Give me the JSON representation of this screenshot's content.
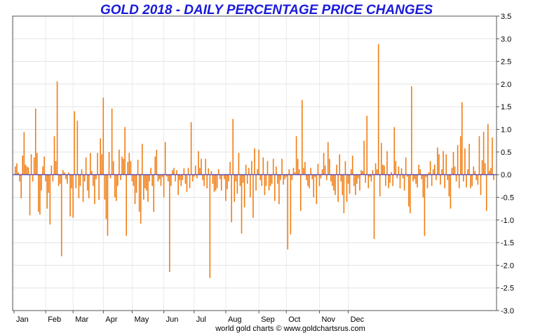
{
  "chart_data": {
    "type": "bar",
    "title": "GOLD 2018 - DAILY PERCENTAGE PRICE CHANGES",
    "credit": "world gold charts © www.goldchartsrus.com",
    "xlabel": "",
    "ylabel": "",
    "ylim": [
      -3.0,
      3.5
    ],
    "y_ticks": [
      "3.5",
      "3.0",
      "2.5",
      "2.0",
      "1.5",
      "1.0",
      "0.5",
      "0.0",
      "-0.5",
      "-1.0",
      "-1.5",
      "-2.0",
      "-2.5",
      "-3.0"
    ],
    "month_labels": [
      "Jan",
      "Feb",
      "Mar",
      "Apr",
      "May",
      "Jun",
      "Jul",
      "Aug",
      "Sep",
      "Oct",
      "Nov",
      "Dec"
    ],
    "y_axis_position": "right",
    "grid": true,
    "bar_color": "#f07d14",
    "zero_line_color": "#1a1acc",
    "title_color": "#1a1adb",
    "series": [
      {
        "name": "Daily % change",
        "values": [
          0.18,
          0.25,
          0.05,
          -0.15,
          -0.52,
          0.42,
          0.94,
          0.22,
          0.18,
          0.16,
          -0.9,
          0.45,
          -0.15,
          0.38,
          1.46,
          0.48,
          -0.82,
          -0.88,
          -0.35,
          0.18,
          0.4,
          -0.15,
          -0.75,
          -0.4,
          -1.1,
          0.2,
          -0.15,
          0.85,
          0.3,
          2.06,
          -0.25,
          -0.2,
          -1.8,
          0.1,
          0.05,
          -0.1,
          -0.2,
          0.05,
          -0.92,
          -0.3,
          -0.95,
          1.4,
          -0.3,
          1.19,
          -0.52,
          -0.25,
          0.12,
          -0.6,
          -0.15,
          0.38,
          -0.35,
          -0.52,
          0.48,
          0.08,
          -0.25,
          -0.65,
          -0.1,
          0.48,
          -0.56,
          0.8,
          0.45,
          1.7,
          -0.55,
          -0.98,
          -1.35,
          0.5,
          -0.08,
          1.46,
          0.3,
          -0.5,
          -0.58,
          -0.25,
          0.55,
          -0.12,
          0.4,
          0.35,
          1.05,
          -1.35,
          0.28,
          0.48,
          0.3,
          -0.15,
          -0.25,
          -0.65,
          -0.4,
          0.33,
          -0.82,
          -1.08,
          0.68,
          -0.55,
          -0.3,
          -0.35,
          -0.6,
          -0.15,
          0.15,
          -0.25,
          -0.82,
          0.4,
          0.55,
          -0.15,
          -0.1,
          -0.25,
          -0.05,
          -0.5,
          0.72,
          -0.04,
          -0.15,
          -2.15,
          -0.25,
          0.1,
          0.15,
          -0.15,
          0.1,
          -0.45,
          -0.12,
          -0.25,
          -0.12,
          0.14,
          -0.2,
          -0.38,
          0.15,
          -0.3,
          1.16,
          -0.15,
          -0.05,
          0.2,
          -0.08,
          0.52,
          0.15,
          0.35,
          -0.12,
          -0.25,
          0.35,
          -0.3,
          0.14,
          -2.28,
          0.08,
          -0.2,
          -0.38,
          -0.35,
          -0.3,
          0.12,
          -0.1,
          -0.35,
          -0.02,
          -0.1,
          -0.58,
          -0.32,
          -0.15,
          0.28,
          -1.05,
          1.23,
          -0.6,
          -0.15,
          -0.42,
          0.48,
          -0.25,
          -1.3,
          -0.18,
          -0.72,
          0.22,
          -0.2,
          0.15,
          -0.5,
          0.3,
          -0.95,
          0.58,
          -0.35,
          0.12,
          0.55,
          -0.12,
          -0.25,
          0.38,
          -0.45,
          -0.25,
          0.3,
          -0.35,
          -0.25,
          -0.2,
          0.35,
          -0.58,
          0.18,
          -0.2,
          -0.65,
          -0.12,
          0.35,
          -0.22,
          -0.1,
          -0.05,
          -1.65,
          0.12,
          -1.32,
          -0.12,
          0.15,
          0.05,
          0.85,
          0.35,
          0.12,
          -0.8,
          1.65,
          0.15,
          0.28,
          -0.12,
          -0.25,
          -0.3,
          0.15,
          -0.1,
          -0.5,
          -0.05,
          -0.65,
          0.24,
          -0.25,
          -0.08,
          0.12,
          0.48,
          0.2,
          -0.12,
          0.72,
          0.35,
          -0.15,
          -0.25,
          -0.35,
          -0.45,
          0.22,
          -0.6,
          0.45,
          -0.15,
          -0.45,
          -0.85,
          0.3,
          -0.6,
          -0.2,
          -0.42,
          0.12,
          0.42,
          -0.25,
          -0.45,
          -0.2,
          -0.08,
          -0.35,
          0.1,
          0.08,
          0.75,
          -0.18,
          1.3,
          -0.3,
          -0.05,
          -0.15,
          0.1,
          -1.42,
          0.25,
          0.12,
          2.88,
          -0.48,
          0.7,
          0.22,
          0.2,
          -0.25,
          0.52,
          -0.3,
          -0.18,
          0.06,
          -0.25,
          1.05,
          0.3,
          -0.08,
          0.18,
          -0.3,
          0.14,
          -0.08,
          -0.35,
          0.38,
          -0.05,
          -0.7,
          -0.85,
          1.95,
          -0.15,
          -0.1,
          -0.2,
          -0.28,
          0.22,
          0.12,
          -0.1,
          -0.5,
          -1.35,
          -0.05,
          -0.3,
          0.05,
          0.3,
          -0.25,
          0.12,
          0.22,
          -0.12,
          0.6,
          0.45,
          -0.22,
          0.12,
          0.52,
          -0.3,
          0.45,
          -0.12,
          -0.48,
          -0.75,
          0.15,
          0.5,
          0.18,
          -0.15,
          0.65,
          -0.3,
          0.85,
          1.6,
          -0.15,
          0.58,
          -0.28,
          0.12,
          0.68,
          -0.3,
          -0.25,
          0.18,
          0.08,
          -0.12,
          -0.22,
          0.85,
          -0.45,
          0.32,
          0.95,
          0.25,
          -0.8,
          1.12,
          0.08,
          0.15,
          0.82,
          -0.12
        ]
      }
    ]
  }
}
